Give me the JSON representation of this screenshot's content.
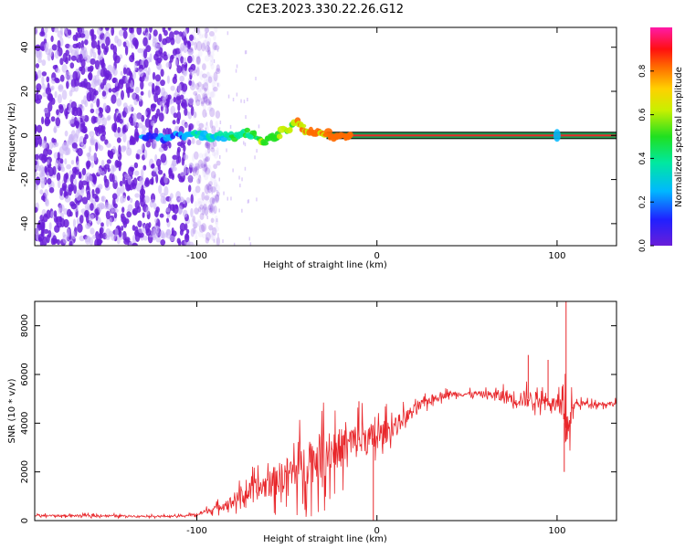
{
  "title": "C2E3.2023.330.22.26.G12",
  "colors": {
    "snr_line": "#e8262a",
    "reference_band": "#1f9b52",
    "reference_center": "#e8262a",
    "scatter_base": "#6a1ed8",
    "scatter_light": "#c9b0f5"
  },
  "chart_data": [
    {
      "type": "heatmap",
      "title": "",
      "xlabel": "Height of straight line (km)",
      "ylabel": "Frequency (Hz)",
      "xlim": [
        -190,
        133
      ],
      "ylim": [
        -50,
        49
      ],
      "x_ticks": [
        -100,
        0,
        100
      ],
      "x_tick_labels": [
        "-100",
        "0",
        "100"
      ],
      "y_ticks": [
        -40,
        -20,
        0,
        20,
        40
      ],
      "y_tick_labels": [
        "-40",
        "-20",
        "0",
        "20",
        "40"
      ],
      "grid": false,
      "colorbar": {
        "label": "Normalized spectral amplitude",
        "range": [
          0,
          1
        ],
        "ticks": [
          0,
          0.2,
          0.4,
          0.6,
          0.8
        ],
        "tick_labels": [
          "0.0",
          "0.2",
          "0.4",
          "0.6",
          "0.8"
        ],
        "colormap": "rainbow (purple to magenta)"
      },
      "features": {
        "scatter_region_x": [
          -190,
          -96
        ],
        "trace_start_x": -130,
        "trace_points": [
          [
            -130,
            0
          ],
          [
            -120,
            -1
          ],
          [
            -110,
            0
          ],
          [
            -104,
            0
          ],
          [
            -98,
            0
          ],
          [
            -92,
            -2
          ],
          [
            -86,
            0
          ],
          [
            -80,
            -1
          ],
          [
            -74,
            1
          ],
          [
            -68,
            1
          ],
          [
            -62,
            -3
          ],
          [
            -56,
            0
          ],
          [
            -50,
            3
          ],
          [
            -44,
            6
          ],
          [
            -40,
            3
          ],
          [
            -36,
            1
          ],
          [
            -30,
            1
          ],
          [
            -24,
            0
          ],
          [
            -18,
            0
          ],
          [
            -14,
            -1
          ]
        ],
        "reference_line_y": 0,
        "reference_line_x": [
          -28,
          133
        ],
        "bump_x": 100
      }
    },
    {
      "type": "line",
      "title": "",
      "xlabel": "Height of straight line (km)",
      "ylabel": "SNR (10 * v/v)",
      "xlim": [
        -190,
        133
      ],
      "ylim": [
        0,
        9000
      ],
      "x_ticks": [
        -100,
        0,
        100
      ],
      "x_tick_labels": [
        "-100",
        "0",
        "100"
      ],
      "y_ticks": [
        0,
        2000,
        4000,
        6000,
        8000
      ],
      "y_tick_labels": [
        "0",
        "2000",
        "4000",
        "6000",
        "8000"
      ],
      "grid": false,
      "series": [
        {
          "envelope_x": [
            -190,
            -170,
            -150,
            -130,
            -110,
            -100,
            -90,
            -80,
            -70,
            -60,
            -50,
            -40,
            -30,
            -20,
            -10,
            0,
            10,
            20,
            30,
            40,
            50,
            60,
            70,
            80,
            90,
            100,
            105,
            110,
            120,
            133
          ],
          "envelope_y": [
            200,
            200,
            200,
            180,
            180,
            250,
            500,
            800,
            1200,
            1500,
            1900,
            2300,
            2700,
            3000,
            3300,
            3400,
            3900,
            4500,
            5000,
            5200,
            5200,
            5200,
            5100,
            5000,
            5000,
            4800,
            3800,
            4800,
            4800,
            4800
          ],
          "noise_amplitude": [
            100,
            100,
            100,
            80,
            80,
            150,
            300,
            600,
            1000,
            1400,
            1800,
            2200,
            2400,
            2000,
            1800,
            1500,
            900,
            600,
            400,
            300,
            250,
            300,
            700,
            900,
            700,
            500,
            2500,
            300,
            250,
            250
          ],
          "spikes": [
            [
              -10,
              4900
            ],
            [
              -2,
              0
            ],
            [
              84,
              6800
            ],
            [
              95,
              6600
            ],
            [
              105,
              9000
            ],
            [
              104,
              2000
            ]
          ]
        }
      ]
    }
  ]
}
